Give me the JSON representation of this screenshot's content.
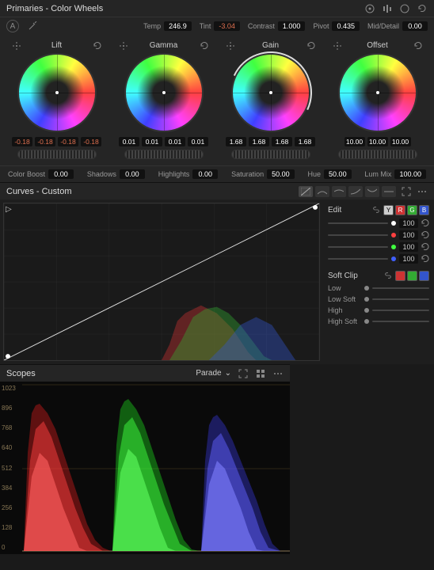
{
  "panel": {
    "title": "Primaries - Color Wheels"
  },
  "topParams": {
    "temp": {
      "label": "Temp",
      "value": "246.9"
    },
    "tint": {
      "label": "Tint",
      "value": "-3.04"
    },
    "contrast": {
      "label": "Contrast",
      "value": "1.000"
    },
    "pivot": {
      "label": "Pivot",
      "value": "0.435"
    },
    "midDetail": {
      "label": "Mid/Detail",
      "value": "0.00"
    }
  },
  "wheels": [
    {
      "title": "Lift",
      "values": [
        "-0.18",
        "-0.18",
        "-0.18",
        "-0.18"
      ],
      "highlight": false
    },
    {
      "title": "Gamma",
      "values": [
        "0.01",
        "0.01",
        "0.01",
        "0.01"
      ],
      "highlight": false
    },
    {
      "title": "Gain",
      "values": [
        "1.68",
        "1.68",
        "1.68",
        "1.68"
      ],
      "highlight": true
    },
    {
      "title": "Offset",
      "values": [
        "10.00",
        "10.00",
        "10.00"
      ],
      "highlight": false
    }
  ],
  "secondaryParams": {
    "colorBoost": {
      "label": "Color Boost",
      "value": "0.00"
    },
    "shadows": {
      "label": "Shadows",
      "value": "0.00"
    },
    "highlights": {
      "label": "Highlights",
      "value": "0.00"
    },
    "saturation": {
      "label": "Saturation",
      "value": "50.00"
    },
    "hue": {
      "label": "Hue",
      "value": "50.00"
    },
    "lumMix": {
      "label": "Lum Mix",
      "value": "100.00"
    }
  },
  "curves": {
    "title": "Curves - Custom",
    "edit": {
      "label": "Edit",
      "channels": [
        {
          "color": "#ffffff",
          "value": "100"
        },
        {
          "color": "#ff4040",
          "value": "100"
        },
        {
          "color": "#40ff40",
          "value": "100"
        },
        {
          "color": "#4060ff",
          "value": "100"
        }
      ]
    },
    "editChips": [
      {
        "bg": "#cccccc",
        "label": "Y"
      },
      {
        "bg": "#cc3333",
        "label": "R"
      },
      {
        "bg": "#33aa33",
        "label": "G"
      },
      {
        "bg": "#3355cc",
        "label": "B"
      }
    ],
    "softClip": {
      "label": "Soft Clip",
      "chips": [
        {
          "bg": "#cc3333"
        },
        {
          "bg": "#33aa33"
        },
        {
          "bg": "#3355cc"
        }
      ],
      "params": [
        "Low",
        "Low Soft",
        "High",
        "High Soft"
      ]
    }
  },
  "scopes": {
    "title": "Scopes",
    "mode": "Parade",
    "ticks": [
      "1023",
      "896",
      "768",
      "640",
      "512",
      "384",
      "256",
      "128",
      "0"
    ]
  },
  "colors": {
    "wheelGradient": "conic-gradient(from 90deg, #ff4040, #ff40ff, #4040ff, #40ffff, #40ff40, #ffff40, #ff4040)"
  }
}
